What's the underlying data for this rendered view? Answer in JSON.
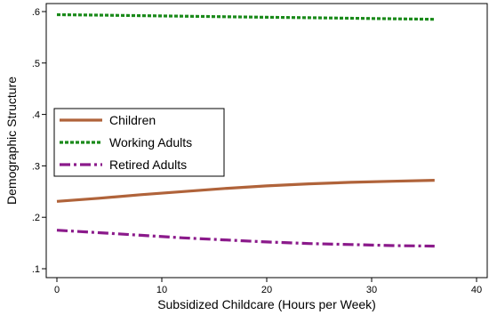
{
  "chart_data": {
    "type": "line",
    "title": "",
    "xlabel": "Subsidized Childcare (Hours per Week)",
    "ylabel": "Demographic Structure",
    "xlim": [
      0,
      40
    ],
    "ylim": [
      0.1,
      0.6
    ],
    "xticks": [
      0,
      10,
      20,
      30,
      40
    ],
    "xtick_labels": [
      "0",
      "10",
      "20",
      "30",
      "40"
    ],
    "yticks": [
      0.1,
      0.2,
      0.3,
      0.4,
      0.5,
      0.6
    ],
    "ytick_labels": [
      ".1",
      ".2",
      ".3",
      ".4",
      ".5",
      ".6"
    ],
    "grid": false,
    "legend_position": "middle-left",
    "series": [
      {
        "name": "Children",
        "color": "#b0633a",
        "dash": "solid",
        "x": [
          0,
          4,
          8,
          12,
          16,
          20,
          24,
          28,
          32,
          36
        ],
        "y": [
          0.231,
          0.237,
          0.244,
          0.25,
          0.256,
          0.261,
          0.265,
          0.268,
          0.27,
          0.272
        ]
      },
      {
        "name": "Working Adults",
        "color": "#1a8a1a",
        "dash": "dotted",
        "x": [
          0,
          4,
          8,
          12,
          16,
          20,
          24,
          28,
          32,
          36
        ],
        "y": [
          0.594,
          0.593,
          0.592,
          0.591,
          0.59,
          0.589,
          0.588,
          0.587,
          0.586,
          0.585
        ]
      },
      {
        "name": "Retired Adults",
        "color": "#8b1a8b",
        "dash": "dashdot",
        "x": [
          0,
          4,
          8,
          12,
          16,
          20,
          24,
          28,
          32,
          36
        ],
        "y": [
          0.175,
          0.17,
          0.165,
          0.16,
          0.156,
          0.152,
          0.149,
          0.147,
          0.145,
          0.144
        ]
      }
    ]
  }
}
